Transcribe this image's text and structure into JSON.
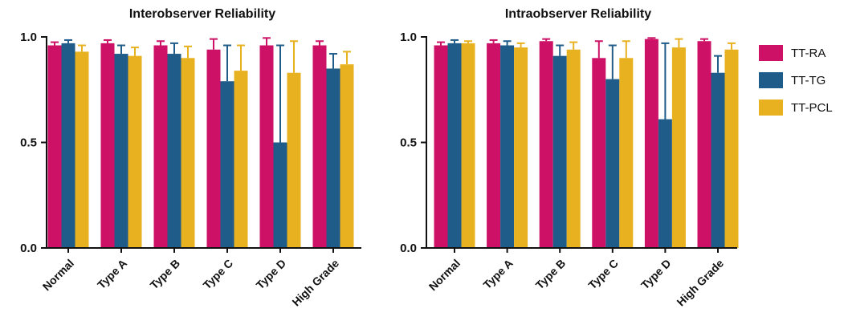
{
  "chart_data": [
    {
      "type": "bar",
      "title": "Interobserver Reliability",
      "categories": [
        "Normal",
        "Type A",
        "Type B",
        "Type C",
        "Type D",
        "High Grade"
      ],
      "ylim": [
        0,
        1.0
      ],
      "yticks": [
        "0.0",
        "0.5",
        "1.0"
      ],
      "ytick_values": [
        0,
        0.5,
        1.0
      ],
      "series": [
        {
          "name": "TT-RA",
          "values": [
            0.96,
            0.97,
            0.96,
            0.94,
            0.96,
            0.96
          ],
          "errors": [
            0.015,
            0.015,
            0.02,
            0.05,
            0.035,
            0.02
          ]
        },
        {
          "name": "TT-TG",
          "values": [
            0.97,
            0.92,
            0.92,
            0.79,
            0.5,
            0.85
          ],
          "errors": [
            0.015,
            0.04,
            0.05,
            0.17,
            0.46,
            0.07
          ]
        },
        {
          "name": "TT-PCL",
          "values": [
            0.93,
            0.91,
            0.9,
            0.84,
            0.83,
            0.87
          ],
          "errors": [
            0.03,
            0.04,
            0.055,
            0.12,
            0.15,
            0.06
          ]
        }
      ]
    },
    {
      "type": "bar",
      "title": "Intraobserver Reliability",
      "categories": [
        "Normal",
        "Type A",
        "Type B",
        "Type C",
        "Type D",
        "High Grade"
      ],
      "ylim": [
        0,
        1.0
      ],
      "yticks": [
        "0.0",
        "0.5",
        "1.0"
      ],
      "ytick_values": [
        0,
        0.5,
        1.0
      ],
      "series": [
        {
          "name": "TT-RA",
          "values": [
            0.96,
            0.97,
            0.98,
            0.9,
            0.99,
            0.98
          ],
          "errors": [
            0.015,
            0.015,
            0.01,
            0.08,
            0.005,
            0.01
          ]
        },
        {
          "name": "TT-TG",
          "values": [
            0.97,
            0.96,
            0.91,
            0.8,
            0.61,
            0.83
          ],
          "errors": [
            0.015,
            0.02,
            0.05,
            0.16,
            0.36,
            0.08
          ]
        },
        {
          "name": "TT-PCL",
          "values": [
            0.97,
            0.95,
            0.94,
            0.9,
            0.95,
            0.94
          ],
          "errors": [
            0.01,
            0.02,
            0.035,
            0.08,
            0.04,
            0.03
          ]
        }
      ]
    }
  ],
  "legend": {
    "items": [
      {
        "label": "TT-RA",
        "color": "#cc1166"
      },
      {
        "label": "TT-TG",
        "color": "#1f5c8a"
      },
      {
        "label": "TT-PCL",
        "color": "#e8b11f"
      }
    ]
  }
}
